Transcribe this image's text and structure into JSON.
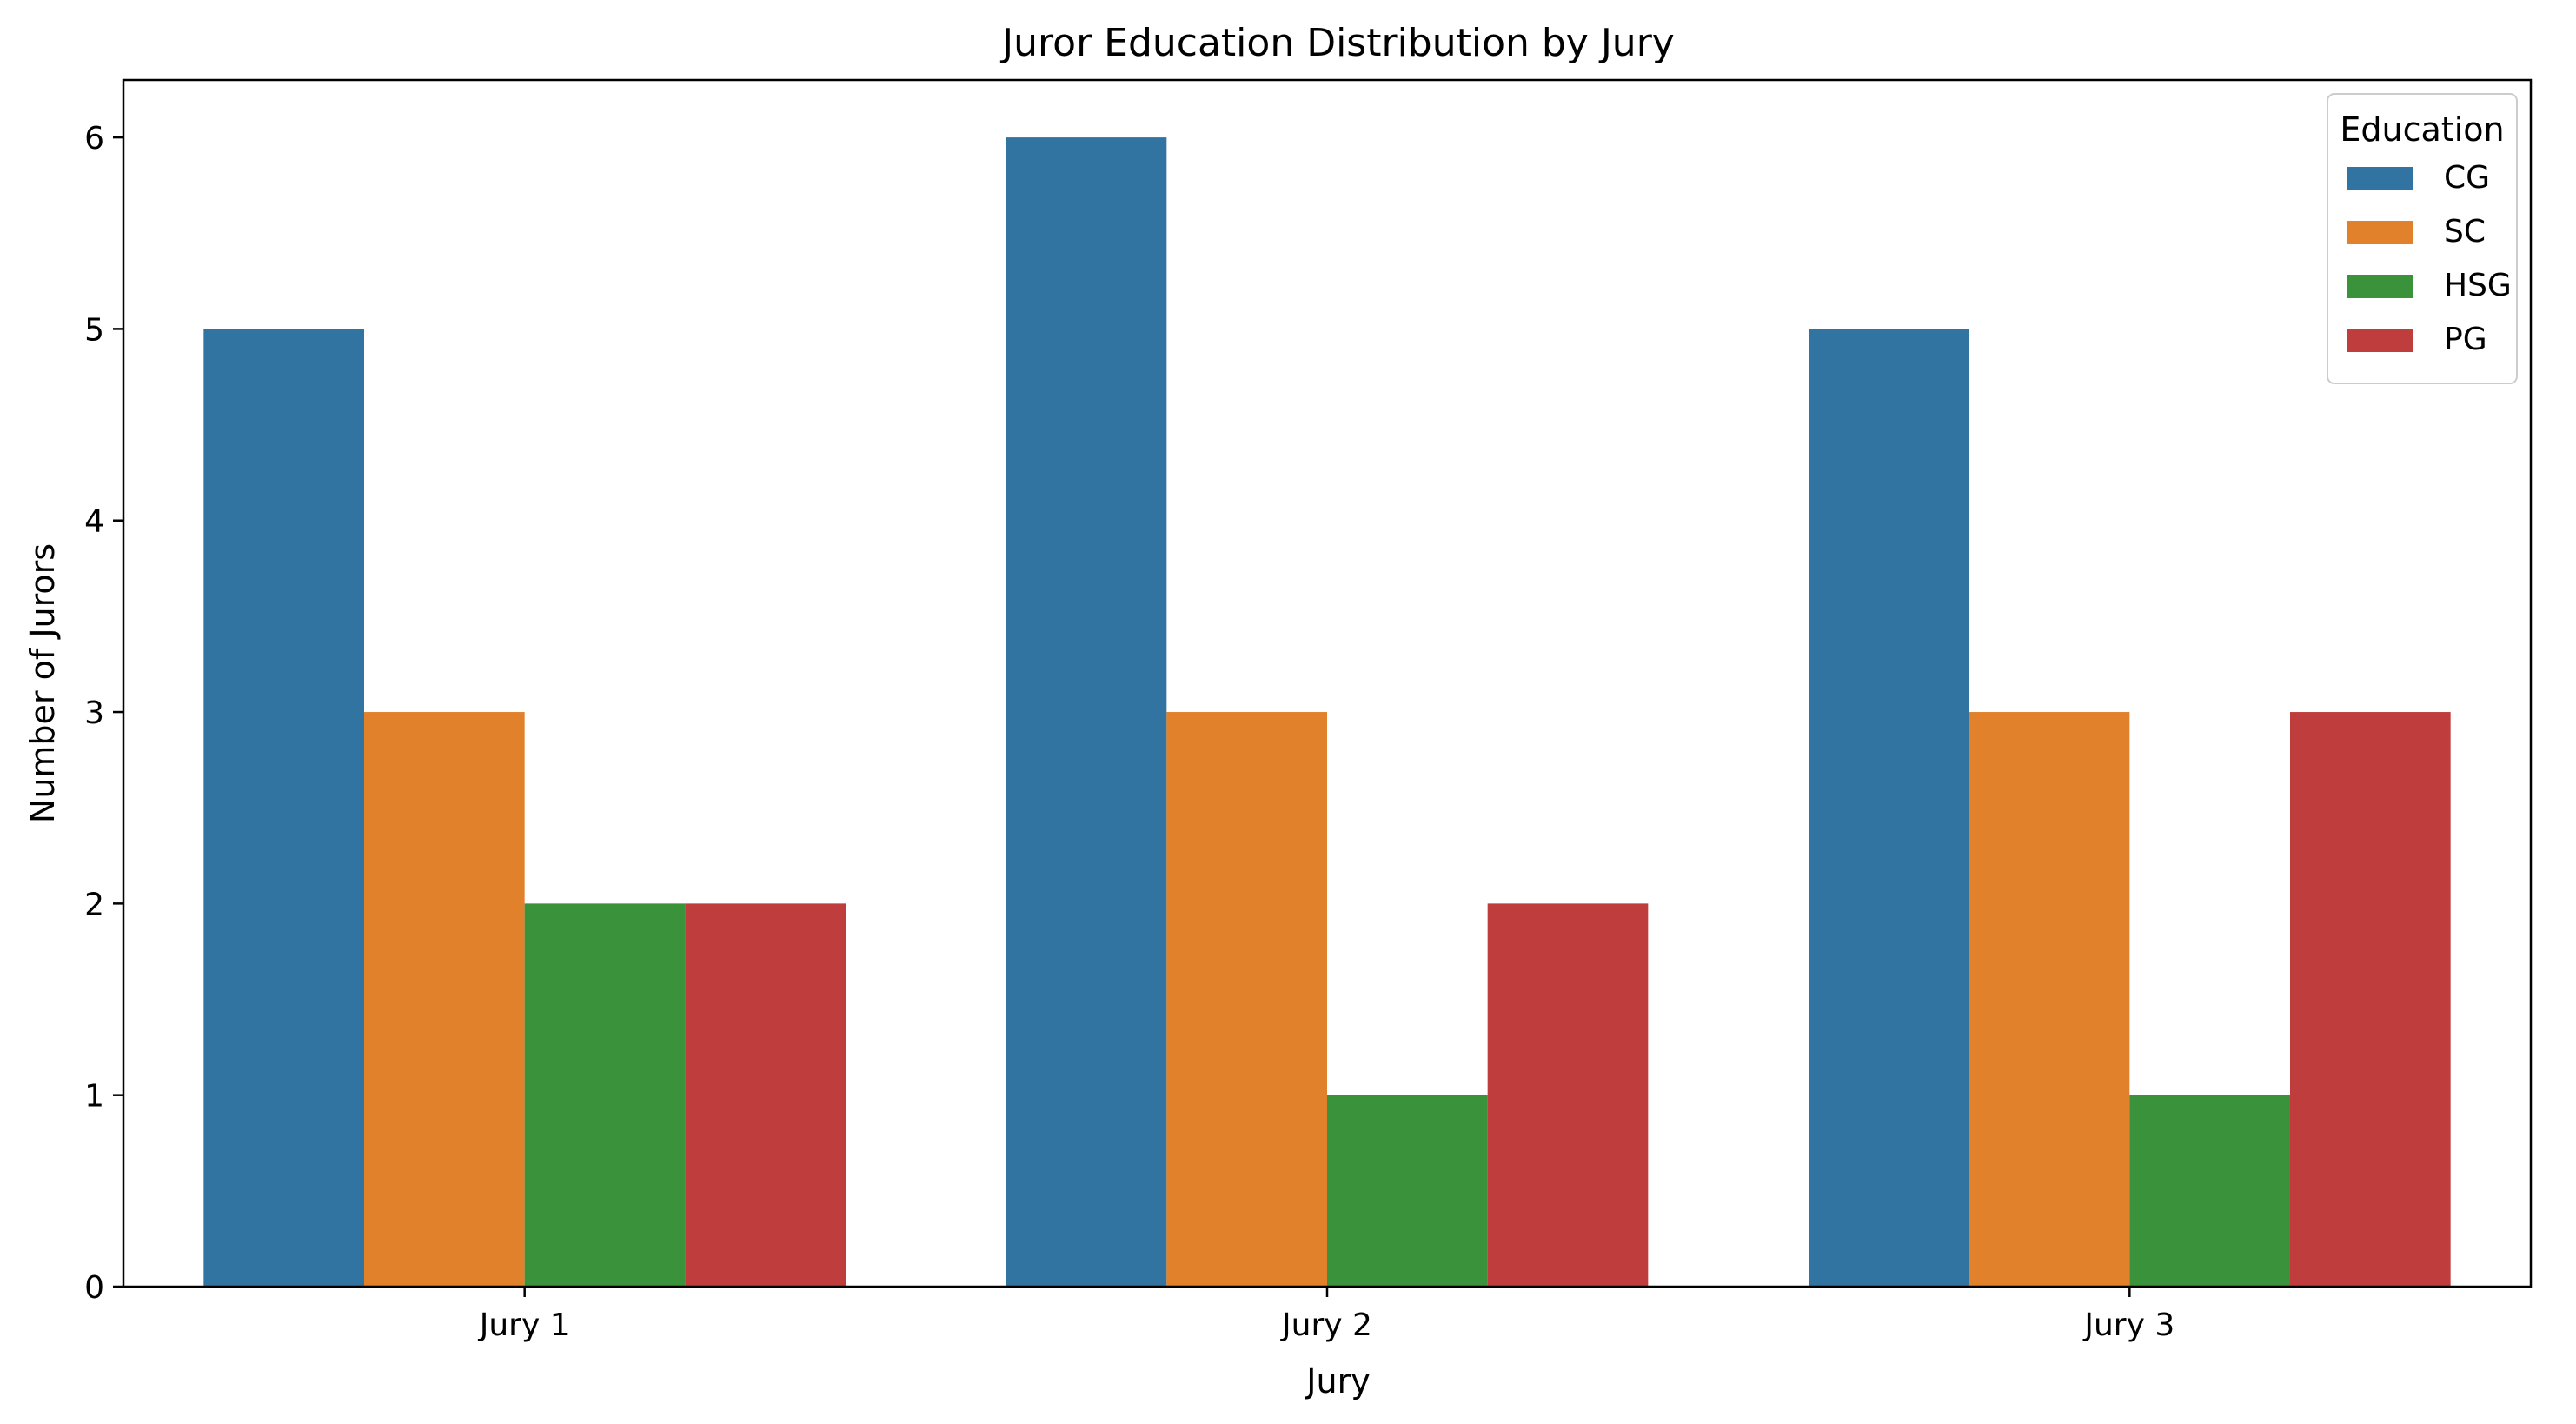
{
  "chart_data": {
    "type": "bar",
    "title": "Juror Education Distribution by Jury",
    "xlabel": "Jury",
    "ylabel": "Number of Jurors",
    "categories": [
      "Jury 1",
      "Jury 2",
      "Jury 3"
    ],
    "series": [
      {
        "name": "CG",
        "color": "#3274a1",
        "values": [
          5,
          6,
          5
        ]
      },
      {
        "name": "SC",
        "color": "#e1812c",
        "values": [
          3,
          3,
          3
        ]
      },
      {
        "name": "HSG",
        "color": "#3a923a",
        "values": [
          2,
          1,
          1
        ]
      },
      {
        "name": "PG",
        "color": "#c03d3e",
        "values": [
          2,
          2,
          3
        ]
      }
    ],
    "ylim": [
      0,
      6.3
    ],
    "yticks": [
      "0",
      "1",
      "2",
      "3",
      "4",
      "5",
      "6"
    ],
    "grid": false,
    "legend": {
      "title": "Education",
      "placement": "top-right"
    }
  }
}
